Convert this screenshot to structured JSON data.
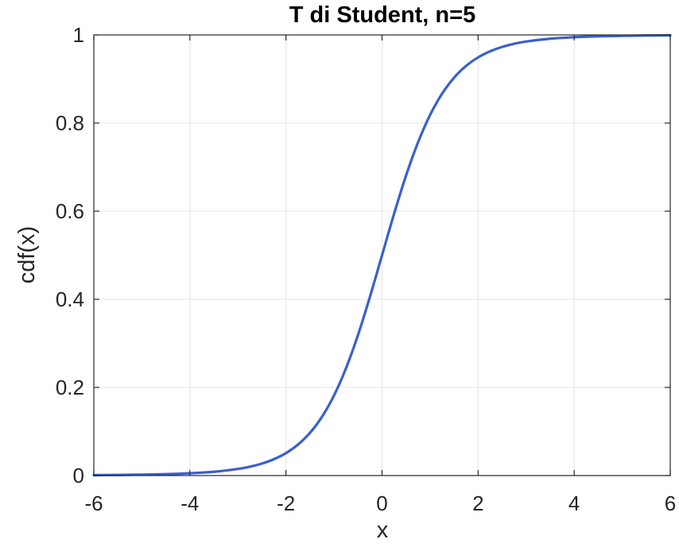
{
  "chart_data": {
    "type": "line",
    "title": "T di Student, n=5",
    "xlabel": "x",
    "ylabel": "cdf(x)",
    "xlim": [
      -6,
      6
    ],
    "ylim": [
      0,
      1
    ],
    "grid": true,
    "x_ticks": [
      -6,
      -4,
      -2,
      0,
      2,
      4,
      6
    ],
    "x_tick_labels": [
      "-6",
      "-4",
      "-2",
      "0",
      "2",
      "4",
      "6"
    ],
    "y_ticks": [
      0,
      0.2,
      0.4,
      0.6,
      0.8,
      1
    ],
    "y_tick_labels": [
      "0",
      "0.2",
      "0.4",
      "0.6",
      "0.8",
      "1"
    ],
    "series": [
      {
        "color": "#3a5fcd",
        "x": [
          -6,
          -5.5,
          -5,
          -4.5,
          -4,
          -3.5,
          -3,
          -2.75,
          -2.5,
          -2.25,
          -2,
          -1.75,
          -1.5,
          -1.25,
          -1,
          -0.75,
          -0.5,
          -0.25,
          0,
          0.25,
          0.5,
          0.75,
          1,
          1.25,
          1.5,
          1.75,
          2,
          2.25,
          2.5,
          2.75,
          3,
          3.5,
          4,
          4.5,
          5,
          5.5,
          6
        ],
        "y": [
          0.0009,
          0.0014,
          0.0021,
          0.0032,
          0.0052,
          0.0086,
          0.015,
          0.0201,
          0.0272,
          0.0372,
          0.051,
          0.0703,
          0.0969,
          0.1334,
          0.1816,
          0.2436,
          0.3191,
          0.4063,
          0.5,
          0.5937,
          0.6809,
          0.7564,
          0.8184,
          0.8666,
          0.9031,
          0.9297,
          0.949,
          0.9628,
          0.9728,
          0.9799,
          0.985,
          0.9914,
          0.9948,
          0.9968,
          0.9979,
          0.9986,
          0.9991
        ]
      }
    ]
  }
}
